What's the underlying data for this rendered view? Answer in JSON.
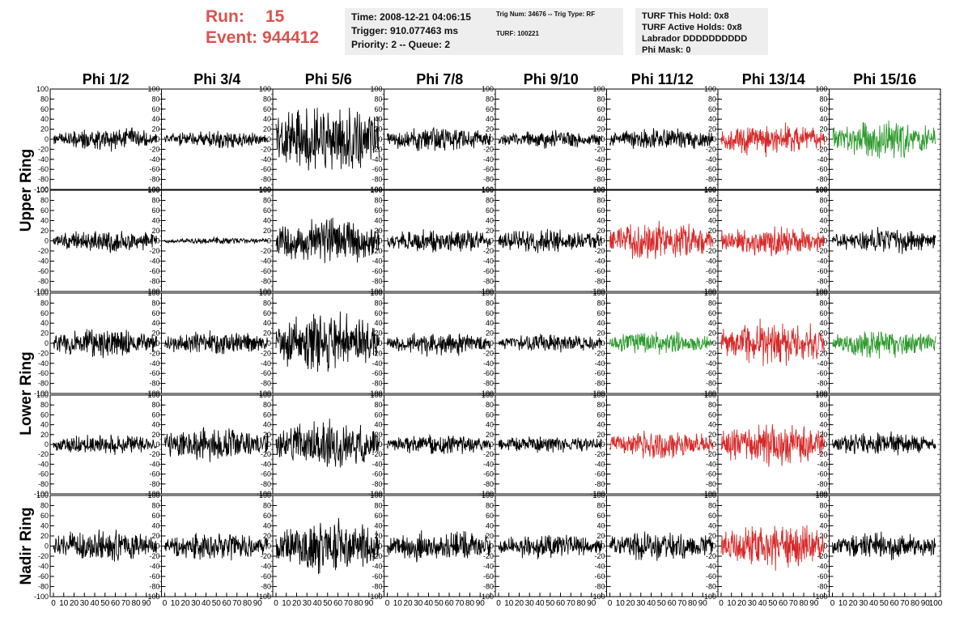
{
  "header": {
    "run_label": "Run:",
    "run_value": "15",
    "event_label": "Event:",
    "event_value": "944412",
    "box1": [
      "Time: 2008-12-21 04:06:15",
      "Trigger: 910.077463 ms",
      "Priority: 2 -- Queue: 2"
    ],
    "box2": [
      "Trig Num: 34676 -- Trig Type: RF",
      "TURF: 100221"
    ],
    "box3": [
      "TURF This Hold: 0x8",
      "TURF Active Holds: 0x8",
      "Labrador DDDDDDDDDD",
      "Phi Mask: 0"
    ]
  },
  "colors": {
    "normal": "#000000",
    "red": "#d62a2a",
    "green": "#2e9a2e",
    "header_text": "#d9534f",
    "box_bg": "#eeeeee"
  },
  "chart_data": {
    "type": "line",
    "columns": [
      "Phi 1/2",
      "Phi 3/4",
      "Phi 5/6",
      "Phi 7/8",
      "Phi 9/10",
      "Phi 11/12",
      "Phi 13/14",
      "Phi 15/16"
    ],
    "ring_labels": [
      {
        "label": "Upper Ring",
        "rows": [
          0,
          1
        ]
      },
      {
        "label": "Lower Ring",
        "rows": [
          2,
          3
        ]
      },
      {
        "label": "Nadir Ring",
        "rows": [
          4
        ]
      }
    ],
    "xlim": [
      0,
      100
    ],
    "ylim": [
      -100,
      100
    ],
    "x_ticks": [
      0,
      10,
      20,
      30,
      40,
      50,
      60,
      70,
      80,
      90,
      100
    ],
    "y_ticks_rows_0_3": [
      -100,
      -80,
      -60,
      -40,
      -20,
      0,
      20,
      40,
      60,
      80,
      100
    ],
    "y_ticks_row_4": [
      -100,
      -80,
      -60,
      -40,
      -20,
      0,
      20,
      40,
      60,
      80,
      100
    ],
    "trace_colors": [
      [
        "normal",
        "normal",
        "normal",
        "normal",
        "normal",
        "normal",
        "red",
        "green"
      ],
      [
        "normal",
        "normal",
        "normal",
        "normal",
        "normal",
        "red",
        "red",
        "normal"
      ],
      [
        "normal",
        "normal",
        "normal",
        "normal",
        "normal",
        "green",
        "red",
        "green"
      ],
      [
        "normal",
        "normal",
        "normal",
        "normal",
        "normal",
        "red",
        "red",
        "normal"
      ],
      [
        "normal",
        "normal",
        "normal",
        "normal",
        "normal",
        "normal",
        "red",
        "normal"
      ]
    ],
    "trace_amplitudes": [
      [
        28,
        22,
        85,
        30,
        22,
        28,
        40,
        45
      ],
      [
        28,
        8,
        55,
        30,
        30,
        45,
        40,
        30
      ],
      [
        35,
        28,
        75,
        28,
        22,
        28,
        55,
        35
      ],
      [
        25,
        45,
        65,
        25,
        22,
        35,
        55,
        30
      ],
      [
        40,
        35,
        65,
        40,
        30,
        35,
        55,
        35
      ]
    ]
  }
}
